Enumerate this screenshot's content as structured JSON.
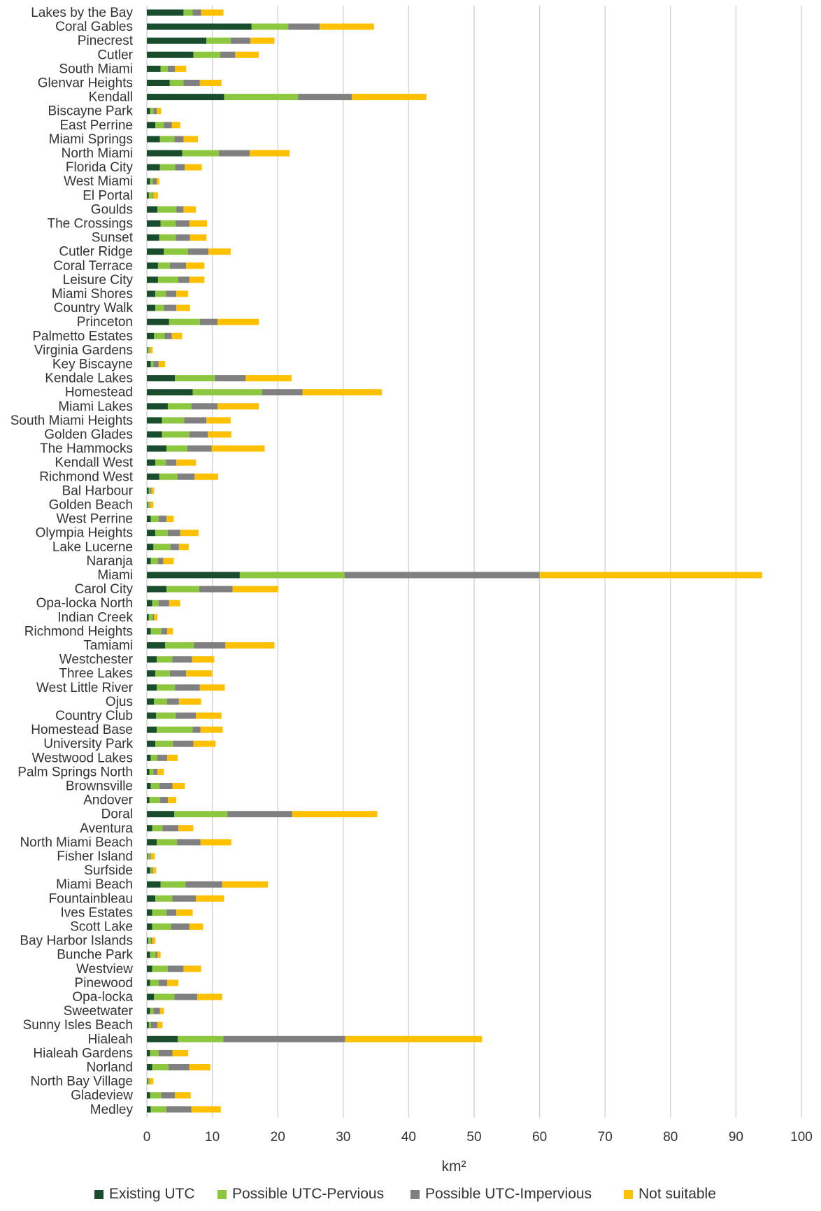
{
  "chart_data": {
    "type": "bar",
    "orientation": "horizontal",
    "stacked": true,
    "xlabel": "km²",
    "xlim": [
      0,
      100
    ],
    "xticks": [
      0,
      10,
      20,
      30,
      40,
      50,
      60,
      70,
      80,
      90,
      100
    ],
    "grid": "vertical",
    "legend_position": "bottom",
    "categories": [
      "Lakes by the Bay",
      "Coral Gables",
      "Pinecrest",
      "Cutler",
      "South Miami",
      "Glenvar Heights",
      "Kendall",
      "Biscayne Park",
      "East Perrine",
      "Miami Springs",
      "North Miami",
      "Florida City",
      "West Miami",
      "El Portal",
      "Goulds",
      "The Crossings",
      "Sunset",
      "Cutler Ridge",
      "Coral Terrace",
      "Leisure City",
      "Miami Shores",
      "Country Walk",
      "Princeton",
      "Palmetto Estates",
      "Virginia Gardens",
      "Key Biscayne",
      "Kendale Lakes",
      "Homestead",
      "Miami Lakes",
      "South Miami Heights",
      "Golden Glades",
      "The Hammocks",
      "Kendall West",
      "Richmond West",
      "Bal Harbour",
      "Golden Beach",
      "West Perrine",
      "Olympia Heights",
      "Lake Lucerne",
      "Naranja",
      "Miami",
      "Carol City",
      "Opa-locka North",
      "Indian Creek",
      "Richmond Heights",
      "Tamiami",
      "Westchester",
      "Three Lakes",
      "West Little River",
      "Ojus",
      "Country Club",
      "Homestead Base",
      "University Park",
      "Westwood Lakes",
      "Palm Springs North",
      "Brownsville",
      "Andover",
      "Doral",
      "Aventura",
      "North Miami Beach",
      "Fisher Island",
      "Surfside",
      "Miami Beach",
      "Fountainbleau",
      "Ives Estates",
      "Scott Lake",
      "Bay Harbor Islands",
      "Bunche Park",
      "Westview",
      "Pinewood",
      "Opa-locka",
      "Sweetwater",
      "Sunny Isles Beach",
      "Hialeah",
      "Hialeah Gardens",
      "Norland",
      "North Bay Village",
      "Gladeview",
      "Medley"
    ],
    "series": [
      {
        "name": "Existing UTC",
        "color": "#1a4d2e",
        "values": [
          5.6,
          16.0,
          9.1,
          7.1,
          2.1,
          3.5,
          11.8,
          0.5,
          1.3,
          2.0,
          5.4,
          2.0,
          0.5,
          0.3,
          1.6,
          2.1,
          1.9,
          2.6,
          1.7,
          1.7,
          1.3,
          1.3,
          3.4,
          1.1,
          0.1,
          0.6,
          4.3,
          7.0,
          3.2,
          2.3,
          2.3,
          3.0,
          1.3,
          1.9,
          0.3,
          0.1,
          0.6,
          1.3,
          1.0,
          0.6,
          14.2,
          3.0,
          0.8,
          0.3,
          0.6,
          2.8,
          1.5,
          1.3,
          1.5,
          1.1,
          1.4,
          1.5,
          1.3,
          0.6,
          0.4,
          0.6,
          0.4,
          4.2,
          0.8,
          1.5,
          0.1,
          0.5,
          2.1,
          1.3,
          0.8,
          0.8,
          0.2,
          0.5,
          0.8,
          0.5,
          1.1,
          0.5,
          0.3,
          4.7,
          0.5,
          0.8,
          0.1,
          0.5,
          0.6
        ]
      },
      {
        "name": "Possible UTC-Pervious",
        "color": "#8dc63f",
        "values": [
          1.4,
          5.6,
          3.7,
          4.1,
          1.1,
          2.1,
          11.3,
          0.5,
          1.3,
          2.2,
          5.6,
          2.3,
          0.4,
          0.6,
          2.9,
          2.3,
          2.5,
          3.7,
          1.8,
          3.1,
          1.6,
          1.3,
          4.7,
          1.6,
          0.3,
          0.4,
          6.1,
          10.6,
          3.6,
          3.4,
          4.2,
          3.2,
          1.6,
          2.8,
          0.2,
          0.3,
          1.2,
          1.9,
          2.6,
          1.1,
          16.0,
          5.0,
          1.0,
          0.6,
          1.6,
          4.4,
          2.4,
          2.2,
          2.8,
          2.0,
          3.0,
          5.5,
          2.7,
          1.0,
          0.6,
          1.3,
          1.6,
          8.1,
          1.6,
          3.1,
          0.3,
          0.2,
          3.8,
          2.6,
          2.2,
          2.9,
          0.4,
          0.8,
          2.4,
          1.3,
          3.1,
          0.5,
          0.3,
          7.0,
          1.3,
          2.5,
          0.2,
          1.7,
          2.4
        ]
      },
      {
        "name": "Possible UTC-Impervious",
        "color": "#808080",
        "values": [
          1.3,
          4.8,
          3.0,
          2.3,
          1.1,
          2.5,
          8.2,
          0.5,
          1.2,
          1.4,
          4.7,
          1.5,
          0.6,
          0.1,
          1.1,
          2.1,
          2.2,
          3.1,
          2.5,
          1.7,
          1.6,
          1.9,
          2.7,
          1.1,
          0.1,
          0.8,
          4.7,
          6.2,
          4.0,
          3.4,
          2.8,
          3.7,
          1.6,
          2.6,
          0.2,
          0.1,
          1.2,
          1.9,
          1.3,
          0.8,
          29.8,
          5.1,
          1.6,
          0.2,
          0.9,
          4.8,
          3.0,
          2.5,
          3.8,
          1.8,
          3.1,
          1.2,
          3.1,
          1.5,
          0.6,
          2.0,
          1.2,
          9.9,
          2.4,
          3.6,
          0.2,
          0.2,
          5.6,
          3.6,
          1.5,
          2.8,
          0.2,
          0.3,
          2.4,
          1.3,
          3.5,
          1.0,
          1.0,
          18.6,
          2.1,
          3.2,
          0.1,
          2.1,
          3.8
        ]
      },
      {
        "name": "Not suitable",
        "color": "#ffc000",
        "values": [
          3.4,
          8.3,
          3.7,
          3.6,
          1.7,
          3.3,
          11.4,
          0.7,
          1.3,
          2.2,
          6.1,
          2.6,
          0.4,
          0.7,
          1.9,
          2.7,
          2.5,
          3.4,
          2.8,
          2.3,
          1.8,
          2.1,
          6.3,
          1.6,
          0.4,
          1.0,
          7.0,
          12.1,
          6.3,
          3.7,
          3.6,
          8.1,
          3.0,
          3.6,
          0.4,
          0.5,
          1.1,
          2.8,
          1.5,
          1.6,
          34.0,
          7.0,
          1.7,
          0.5,
          0.9,
          7.5,
          3.4,
          4.0,
          3.8,
          3.4,
          3.9,
          3.4,
          3.4,
          1.6,
          1.0,
          1.9,
          1.3,
          13.0,
          2.3,
          4.7,
          0.6,
          0.5,
          7.0,
          4.3,
          2.5,
          2.1,
          0.5,
          0.5,
          2.7,
          1.7,
          3.8,
          0.6,
          0.8,
          20.9,
          2.4,
          3.2,
          0.6,
          2.4,
          4.5
        ]
      }
    ]
  }
}
